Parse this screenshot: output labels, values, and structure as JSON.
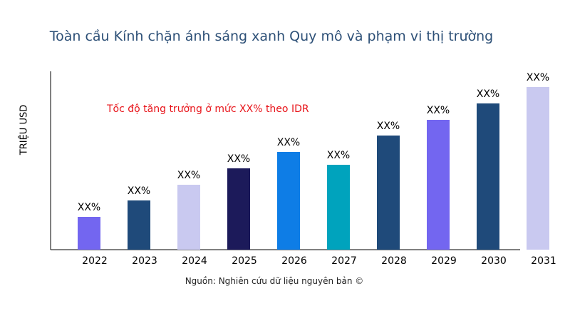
{
  "chart_data": {
    "type": "bar",
    "title": "Toàn cầu Kính chặn ánh sáng xanh Quy mô và phạm vi thị trường",
    "xlabel": "",
    "ylabel": "TRIỆU USD",
    "categories": [
      "2022",
      "2023",
      "2024",
      "2025",
      "2026",
      "2027",
      "2028",
      "2029",
      "2030",
      "2031"
    ],
    "values": [
      46,
      69,
      91,
      114,
      137,
      119,
      160,
      182,
      205,
      228
    ],
    "data_labels": [
      "XX%",
      "XX%",
      "XX%",
      "XX%",
      "XX%",
      "XX%",
      "XX%",
      "XX%",
      "XX%",
      "XX%"
    ],
    "colors": [
      "#7366f0",
      "#1f4a7a",
      "#c9c9f0",
      "#1c1a5a",
      "#0e7de6",
      "#00a3bd",
      "#1f4a7a",
      "#7366f0",
      "#1f4a7a",
      "#c9c9f0"
    ],
    "ylim": [
      0,
      250
    ],
    "grid": false,
    "annotation": "Tốc độ tăng trưởng ở mức XX% theo IDR",
    "source": "Nguồn: Nghiên cứu dữ liệu nguyên bản ©"
  }
}
